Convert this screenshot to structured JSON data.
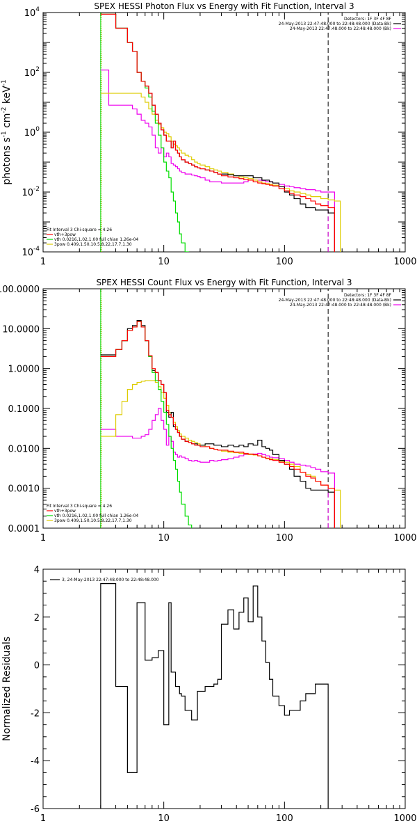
{
  "colors": {
    "data": "#000000",
    "total": "#ff0000",
    "thermal": "#00dd00",
    "nonthermal": "#ddcc00",
    "background": "#ee00ee"
  },
  "chart_data": [
    {
      "type": "line",
      "title": "SPEX HESSI Photon Flux vs Energy with Fit Function, Interval 3",
      "ylabel_parts": [
        "photons s",
        "-1",
        " cm",
        "-2",
        " keV",
        "-1"
      ],
      "x_scale": "log",
      "y_scale": "log",
      "xlim": [
        1,
        1000
      ],
      "ylim": [
        0.0001,
        10000
      ],
      "x_ticks": [
        1,
        10,
        100,
        1000
      ],
      "x_tick_labels": [
        "1",
        "10",
        "100",
        "1000"
      ],
      "y_ticks": [
        0.0001,
        0.01,
        1,
        100,
        10000
      ],
      "y_tick_labels": [
        [
          "10",
          "-4"
        ],
        [
          "10",
          "-2"
        ],
        [
          "10",
          "0"
        ],
        [
          "10",
          "2"
        ],
        [
          "10",
          "4"
        ]
      ],
      "legend_top": [
        "Detectors: 1F 3F 4F 8F",
        "24-May-2013 22:47:48.000 to 22:48:48.000 (Data-Bk)",
        "24-May-2013 22:47:48.000 to 22:48:48.000 (Bk)"
      ],
      "legend_bottom": [
        "Fit Interval 3   Chi-square = 4.26",
        "vth+3pow",
        "vth 0.0216,1.02,1.00  full chian 1.26e-04",
        "3pow 0.409,1.50,10.5,8.22,17.7,1.30"
      ],
      "edges": [
        3,
        3.5,
        4,
        4.5,
        5,
        5.5,
        6,
        6.5,
        7,
        7.5,
        8,
        8.5,
        9,
        9.5,
        10,
        10.5,
        11,
        11.5,
        12,
        12.5,
        13,
        13.5,
        14,
        15,
        16,
        17,
        18,
        19,
        20,
        22,
        24,
        26,
        28,
        30,
        34,
        38,
        42,
        46,
        50,
        55,
        60,
        65,
        70,
        75,
        80,
        90,
        100,
        110,
        120,
        135,
        150,
        165,
        180,
        200,
        230,
        260,
        290
      ],
      "series": [
        {
          "key": "data",
          "values": [
            8800,
            8800,
            3000,
            3000,
            1000,
            500,
            100,
            50,
            35,
            20,
            8,
            4,
            2,
            1.2,
            0.8,
            0.5,
            0.5,
            0.3,
            0.5,
            0.25,
            0.2,
            0.15,
            0.12,
            0.1,
            0.09,
            0.08,
            0.07,
            0.065,
            0.06,
            0.055,
            0.05,
            0.045,
            0.04,
            0.04,
            0.038,
            0.035,
            0.035,
            0.035,
            0.035,
            0.03,
            0.03,
            0.025,
            0.025,
            0.022,
            0.02,
            0.015,
            0.01,
            0.008,
            0.006,
            0.004,
            0.003,
            0.003,
            0.0025,
            0.0025,
            0.002,
            null
          ]
        },
        {
          "key": "total",
          "values": [
            8800,
            8800,
            3000,
            3000,
            1000,
            500,
            100,
            50,
            35,
            20,
            8,
            4,
            2,
            1.2,
            0.8,
            0.5,
            0.5,
            0.3,
            0.5,
            0.25,
            0.2,
            0.15,
            0.12,
            0.1,
            0.09,
            0.08,
            0.07,
            0.065,
            0.06,
            0.055,
            0.05,
            0.045,
            0.04,
            0.035,
            0.032,
            0.03,
            0.028,
            0.026,
            0.025,
            0.022,
            0.02,
            0.019,
            0.018,
            0.017,
            0.016,
            0.013,
            0.011,
            0.009,
            0.008,
            0.007,
            0.006,
            0.005,
            0.004,
            0.0035,
            0.003,
            null
          ]
        },
        {
          "key": "thermal",
          "values": [
            8800,
            8800,
            3000,
            3000,
            1000,
            500,
            100,
            50,
            30,
            15,
            5,
            2,
            0.8,
            0.3,
            0.1,
            0.05,
            0.03,
            0.01,
            0.005,
            0.002,
            0.001,
            0.0004,
            0.0002,
            0.0001,
            3e-05,
            null,
            null,
            null,
            null,
            null,
            null,
            null,
            null,
            null,
            null,
            null,
            null,
            null,
            null,
            null,
            null,
            null,
            null,
            null,
            null,
            null,
            null,
            null,
            null,
            null,
            null,
            null,
            null,
            null,
            null,
            null
          ]
        },
        {
          "key": "nonthermal",
          "values": [
            20,
            20,
            20,
            20,
            20,
            20,
            20,
            15,
            10,
            6,
            4,
            2.5,
            1.8,
            1.4,
            1,
            0.9,
            0.7,
            0.5,
            0.4,
            0.35,
            0.3,
            0.25,
            0.2,
            0.17,
            0.15,
            0.12,
            0.1,
            0.09,
            0.08,
            0.07,
            0.06,
            0.055,
            0.05,
            0.045,
            0.04,
            0.035,
            0.032,
            0.03,
            0.028,
            0.025,
            0.022,
            0.02,
            0.019,
            0.018,
            0.017,
            0.015,
            0.013,
            0.011,
            0.01,
            0.009,
            0.008,
            0.007,
            0.007,
            0.006,
            0.0055,
            0.005
          ]
        },
        {
          "key": "background",
          "values": [
            120,
            8,
            8,
            8,
            8,
            6,
            4,
            2.5,
            2,
            1.5,
            0.8,
            0.3,
            0.2,
            0.3,
            0.15,
            0.2,
            0.15,
            0.09,
            0.08,
            0.07,
            0.06,
            0.05,
            0.045,
            0.04,
            0.04,
            0.037,
            0.035,
            0.033,
            0.03,
            0.025,
            0.022,
            0.022,
            0.022,
            0.02,
            0.02,
            0.02,
            0.02,
            0.022,
            0.025,
            0.025,
            0.025,
            0.024,
            0.022,
            0.022,
            0.02,
            0.018,
            0.016,
            0.015,
            0.014,
            0.013,
            0.012,
            0.012,
            0.011,
            0.01,
            0.01,
            null
          ]
        }
      ],
      "vlines": [
        {
          "x": 3,
          "style": "dotted",
          "key": "data"
        },
        {
          "x": 3,
          "style": "solid",
          "key": "thermal"
        },
        {
          "x": 3.05,
          "style": "dotted",
          "key": "nonthermal"
        },
        {
          "x": 230,
          "style": "dashed",
          "key": "data"
        },
        {
          "x": 230,
          "style": "dashed",
          "key": "background",
          "y_range": [
            0.0001,
            0.005
          ]
        }
      ]
    },
    {
      "type": "line",
      "title": "SPEX HESSI Count Flux vs Energy with Fit Function, Interval 3",
      "x_scale": "log",
      "y_scale": "log",
      "xlim": [
        1,
        1000
      ],
      "ylim": [
        0.0001,
        100
      ],
      "x_ticks": [
        1,
        10,
        100,
        1000
      ],
      "x_tick_labels": [
        "1",
        "10",
        "100",
        "1000"
      ],
      "y_ticks": [
        0.0001,
        0.001,
        0.01,
        0.1,
        1,
        10,
        100
      ],
      "y_tick_labels": [
        "0.0001",
        "0.0010",
        "0.0100",
        "0.1000",
        "1.0000",
        "10.0000",
        "100.0000"
      ],
      "legend_top": [
        "Detectors: 1F 3F 4F 8F",
        "24-May-2013 22:47:48.000 to 22:48:48.000 (Data-Bk)",
        "24-May-2013 22:47:48.000 to 22:48:48.000 (Bk)"
      ],
      "legend_bottom": [
        "Fit Interval 3   Chi-square = 4.26",
        "vth+3pow",
        "vth 0.0216,1.02,1.00  full chian 1.26e-04",
        "3pow 0.409,1.50,10.5,8.22,17.7,1.30"
      ],
      "edges": [
        3,
        3.5,
        4,
        4.5,
        5,
        5.5,
        6,
        6.5,
        7,
        7.5,
        8,
        8.5,
        9,
        9.5,
        10,
        10.5,
        11,
        11.5,
        12,
        12.5,
        13,
        13.5,
        14,
        15,
        16,
        17,
        18,
        19,
        20,
        22,
        24,
        26,
        28,
        30,
        34,
        38,
        42,
        46,
        50,
        55,
        60,
        65,
        70,
        75,
        80,
        90,
        100,
        110,
        120,
        135,
        150,
        165,
        180,
        200,
        230,
        260,
        290
      ],
      "series": [
        {
          "key": "data",
          "values": [
            2.2,
            2.2,
            3,
            5,
            10,
            12,
            16,
            12,
            5,
            2,
            0.9,
            0.8,
            0.5,
            0.4,
            0.25,
            0.08,
            0.06,
            0.08,
            0.035,
            0.03,
            0.025,
            0.02,
            0.017,
            0.015,
            0.014,
            0.013,
            0.013,
            0.012,
            0.012,
            0.013,
            0.013,
            0.012,
            0.012,
            0.011,
            0.012,
            0.011,
            0.012,
            0.011,
            0.013,
            0.012,
            0.016,
            0.011,
            0.01,
            0.009,
            0.007,
            0.005,
            0.004,
            0.003,
            0.002,
            0.0015,
            0.001,
            0.0009,
            0.0009,
            0.0009,
            0.0008,
            null
          ]
        },
        {
          "key": "total",
          "values": [
            2,
            2,
            3,
            5,
            9,
            11,
            15,
            11,
            5,
            2.1,
            1,
            0.8,
            0.5,
            0.4,
            0.25,
            0.09,
            0.07,
            0.06,
            0.04,
            0.03,
            0.025,
            0.02,
            0.017,
            0.015,
            0.014,
            0.013,
            0.012,
            0.012,
            0.011,
            0.011,
            0.01,
            0.0095,
            0.009,
            0.009,
            0.0085,
            0.008,
            0.008,
            0.0075,
            0.0072,
            0.007,
            0.0065,
            0.006,
            0.0055,
            0.0052,
            0.005,
            0.0045,
            0.004,
            0.0035,
            0.003,
            0.0025,
            0.002,
            0.0018,
            0.0015,
            0.0012,
            0.001,
            null
          ]
        },
        {
          "key": "thermal",
          "values": [
            2,
            2,
            3,
            5,
            9,
            11,
            15,
            11,
            5,
            2,
            0.8,
            0.5,
            0.3,
            0.15,
            0.08,
            0.04,
            0.02,
            0.01,
            0.005,
            0.003,
            0.0015,
            0.0008,
            0.0004,
            0.0002,
            0.00012,
            5e-05,
            null,
            null,
            null,
            null,
            null,
            null,
            null,
            null,
            null,
            null,
            null,
            null,
            null,
            null,
            null,
            null,
            null,
            null,
            null,
            null,
            null,
            null,
            null,
            null,
            null,
            null,
            null,
            null,
            null,
            null
          ]
        },
        {
          "key": "nonthermal",
          "values": [
            0.02,
            0.02,
            0.07,
            0.15,
            0.3,
            0.4,
            0.45,
            0.48,
            0.5,
            0.5,
            0.5,
            0.45,
            0.35,
            0.25,
            0.18,
            0.12,
            0.08,
            0.06,
            0.045,
            0.035,
            0.028,
            0.023,
            0.02,
            0.018,
            0.016,
            0.015,
            0.014,
            0.013,
            0.012,
            0.011,
            0.01,
            0.0095,
            0.009,
            0.0085,
            0.008,
            0.0078,
            0.0075,
            0.0072,
            0.007,
            0.0068,
            0.0065,
            0.006,
            0.0057,
            0.0055,
            0.0052,
            0.0048,
            0.0045,
            0.004,
            0.0035,
            0.0025,
            0.0022,
            0.002,
            0.0015,
            0.0012,
            0.001,
            0.0009
          ]
        },
        {
          "key": "background",
          "values": [
            0.03,
            0.03,
            0.02,
            0.02,
            0.02,
            0.018,
            0.018,
            0.02,
            0.022,
            0.03,
            0.05,
            0.07,
            0.1,
            0.05,
            0.03,
            0.012,
            0.02,
            0.015,
            0.008,
            0.007,
            0.006,
            0.0065,
            0.006,
            0.0055,
            0.005,
            0.0048,
            0.005,
            0.0047,
            0.0045,
            0.0045,
            0.005,
            0.0048,
            0.005,
            0.0052,
            0.0055,
            0.006,
            0.0065,
            0.007,
            0.007,
            0.0072,
            0.0075,
            0.007,
            0.0065,
            0.006,
            0.0058,
            0.0055,
            0.005,
            0.0045,
            0.004,
            0.0038,
            0.0036,
            0.0033,
            0.003,
            0.0026,
            0.0024,
            null
          ]
        }
      ],
      "vlines": [
        {
          "x": 3,
          "style": "dotted",
          "key": "data"
        },
        {
          "x": 3,
          "style": "solid",
          "key": "thermal"
        },
        {
          "x": 3.05,
          "style": "dotted",
          "key": "nonthermal"
        },
        {
          "x": 230,
          "style": "dashed",
          "key": "data"
        },
        {
          "x": 230,
          "style": "dashed",
          "key": "background",
          "y_range": [
            0.0001,
            0.001
          ]
        }
      ]
    },
    {
      "type": "line",
      "title": "",
      "ylabel": "Normalized Residuals",
      "x_scale": "log",
      "y_scale": "linear",
      "xlim": [
        1,
        1000
      ],
      "ylim": [
        -6,
        4
      ],
      "x_ticks": [
        1,
        10,
        100,
        1000
      ],
      "x_tick_labels": [
        "1",
        "10",
        "100",
        "1000"
      ],
      "y_ticks": [
        -6,
        -4,
        -2,
        0,
        2,
        4
      ],
      "y_tick_labels": [
        "-6",
        "-4",
        "-2",
        "0",
        "2",
        "4"
      ],
      "legend_top_left": [
        "3, 24-May-2013 22:47:48.000 to 22:48:48.000"
      ],
      "edges": [
        3,
        3.5,
        4,
        4.5,
        5,
        5.5,
        6,
        6.5,
        7,
        7.5,
        8,
        8.5,
        9,
        9.5,
        10,
        10.5,
        11,
        11.5,
        12,
        12.5,
        13,
        13.5,
        14,
        15,
        16,
        17,
        18,
        19,
        20,
        22,
        24,
        26,
        28,
        30,
        34,
        38,
        42,
        46,
        50,
        55,
        60,
        65,
        70,
        75,
        80,
        90,
        100,
        110,
        120,
        135,
        150,
        165,
        180,
        200,
        230
      ],
      "series": [
        {
          "key": "data",
          "drop_to_min": true,
          "values": [
            3.4,
            3.4,
            -0.9,
            -0.9,
            -4.5,
            -4.5,
            2.6,
            2.6,
            0.2,
            0.2,
            0.3,
            0.3,
            0.6,
            0.6,
            -2.5,
            -2.5,
            2.6,
            -0.3,
            -0.3,
            -0.9,
            -0.9,
            -1.2,
            -1.3,
            -1.9,
            -1.9,
            -2.3,
            -2.3,
            -1.1,
            -1.1,
            -0.9,
            -0.9,
            -0.8,
            -0.6,
            1.7,
            2.3,
            1.5,
            2.2,
            2.8,
            1.8,
            3.3,
            2.0,
            1.0,
            0.1,
            -0.6,
            -1.3,
            -1.7,
            -2.1,
            -1.9,
            -1.9,
            -1.5,
            -1.2,
            -1.2,
            -0.8,
            -0.8
          ]
        }
      ]
    }
  ]
}
